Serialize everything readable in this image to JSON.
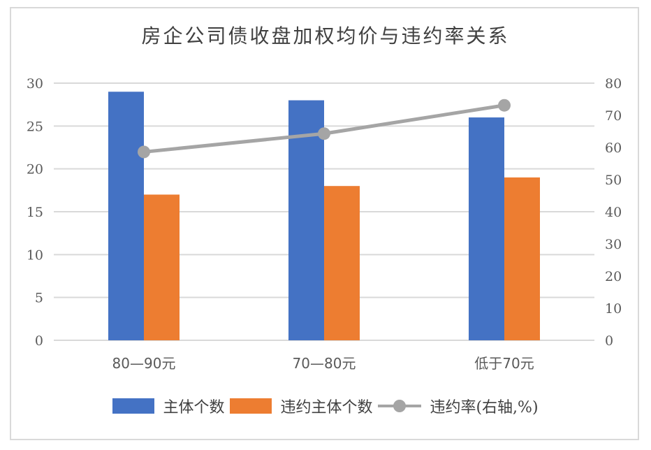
{
  "chart_data": {
    "type": "bar",
    "combo": "bar + line (secondary axis)",
    "title": "房企公司债收盘加权均价与违约率关系",
    "categories": [
      "80—90元",
      "70—80元",
      "低于70元"
    ],
    "series": [
      {
        "name": "主体个数",
        "type": "bar",
        "axis": "left",
        "color": "#4472C4",
        "values": [
          29,
          28,
          26
        ]
      },
      {
        "name": "违约主体个数",
        "type": "bar",
        "axis": "left",
        "color": "#ED7D31",
        "values": [
          17,
          18,
          19
        ]
      },
      {
        "name": "违约率(右轴,%)",
        "type": "line",
        "axis": "right",
        "color": "#A5A5A5",
        "values": [
          58.6,
          64.3,
          73.1
        ]
      }
    ],
    "xlabel": "",
    "ylabel": "",
    "y_left": {
      "range": [
        0,
        30
      ],
      "ticks": [
        "0",
        "5",
        "10",
        "15",
        "20",
        "25",
        "30"
      ]
    },
    "y_right": {
      "range": [
        0,
        80
      ],
      "ticks": [
        "0",
        "10",
        "20",
        "30",
        "40",
        "50",
        "60",
        "70",
        "80"
      ]
    },
    "grid": true,
    "legend_position": "bottom"
  },
  "legend": {
    "item0": "主体个数",
    "item1": "违约主体个数",
    "item2": "违约率(右轴,%)"
  }
}
